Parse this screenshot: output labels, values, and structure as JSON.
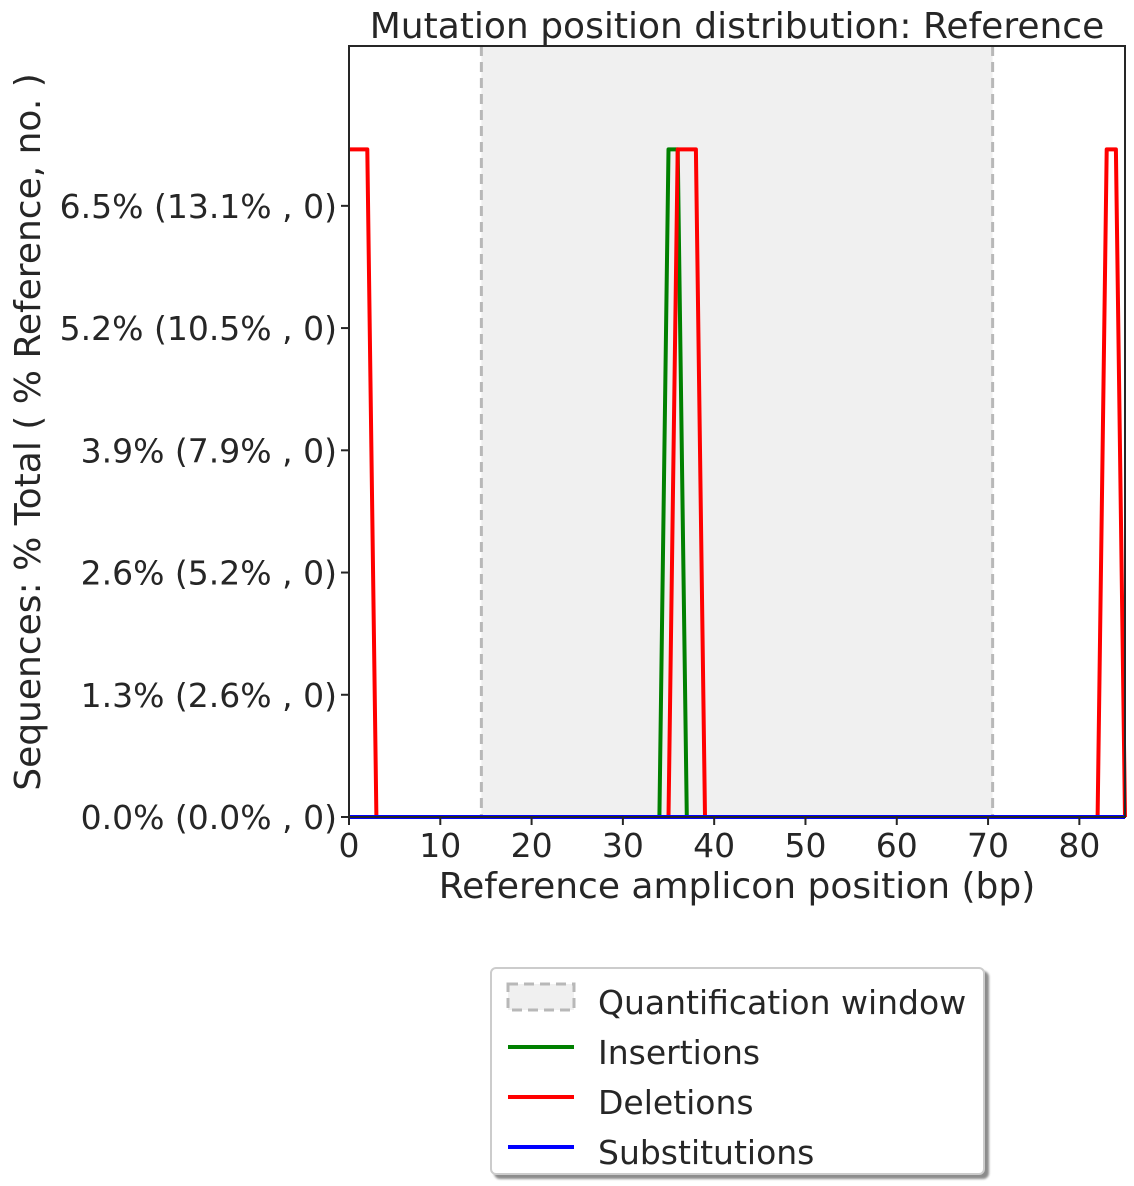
{
  "chart_data": {
    "type": "line",
    "title": "Mutation position distribution: Reference",
    "xlabel": "Reference amplicon position (bp)",
    "ylabel": "Sequences: % Total ( % Reference, no. )",
    "xlim": [
      0,
      85
    ],
    "ylim": [
      0,
      8.2
    ],
    "x_ticks": [
      0,
      10,
      20,
      30,
      40,
      50,
      60,
      70,
      80
    ],
    "y_ticks": [
      {
        "value": 0.0,
        "label": "0.0% (0.0% , 0)"
      },
      {
        "value": 1.3,
        "label": "1.3% (2.6% , 0)"
      },
      {
        "value": 2.6,
        "label": "2.6% (5.2% , 0)"
      },
      {
        "value": 3.9,
        "label": "3.9% (7.9% , 0)"
      },
      {
        "value": 5.2,
        "label": "5.2% (10.5% , 0)"
      },
      {
        "value": 6.5,
        "label": "6.5% (13.1% , 0)"
      }
    ],
    "quantification_window": {
      "start": 14.5,
      "end": 70.5
    },
    "series": [
      {
        "name": "Insertions",
        "color": "#008000",
        "x": [
          0,
          34,
          35,
          36,
          37,
          85
        ],
        "y": [
          0,
          0,
          7.1,
          7.1,
          0,
          0
        ]
      },
      {
        "name": "Deletions",
        "color": "#ff0000",
        "x": [
          0,
          1,
          2,
          3,
          34,
          35,
          36,
          37,
          38,
          39,
          82,
          83,
          84,
          85
        ],
        "y": [
          7.1,
          7.1,
          7.1,
          0,
          0,
          0,
          7.1,
          7.1,
          7.1,
          0,
          0,
          7.1,
          7.1,
          0
        ]
      },
      {
        "name": "Substitutions",
        "color": "#0000ff",
        "x": [
          0,
          85
        ],
        "y": [
          0,
          0
        ]
      }
    ],
    "legend": {
      "placement": "below",
      "entries": [
        "Quantification window",
        "Insertions",
        "Deletions",
        "Substitutions"
      ]
    },
    "grid": false
  }
}
